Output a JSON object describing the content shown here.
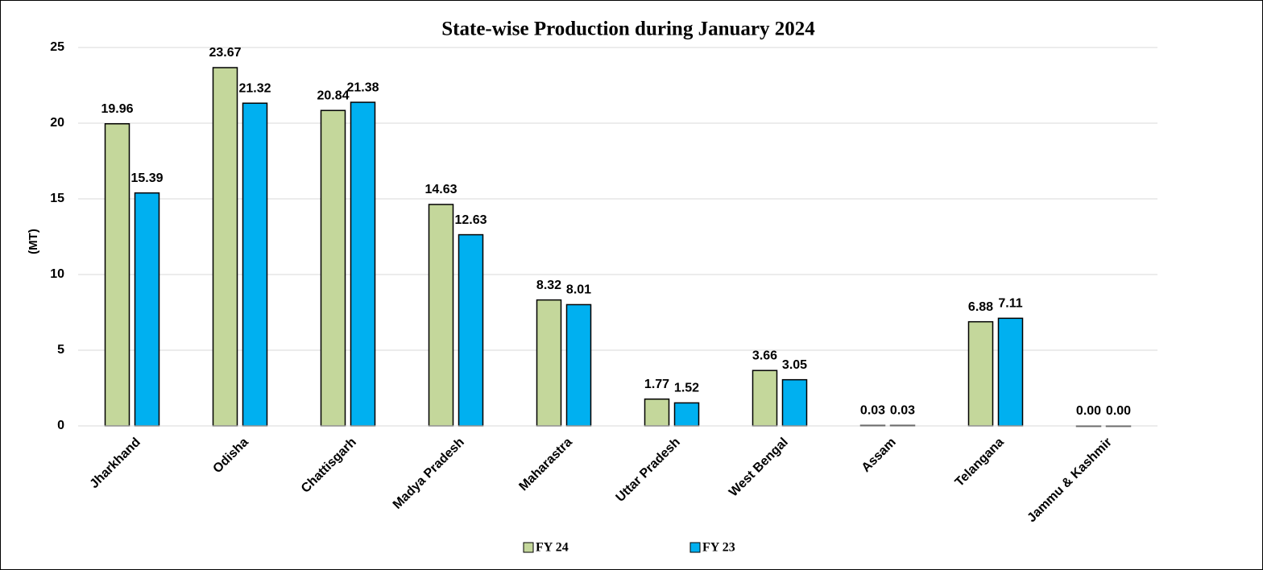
{
  "chart_data": {
    "type": "bar",
    "title": "State-wise Production during January 2024",
    "ylabel": "(MT)",
    "categories": [
      "Jharkhand",
      "Odisha",
      "Chattisgarh",
      "Madya Pradesh",
      "Maharastra",
      "Uttar Pradesh",
      "West Bengal",
      "Assam",
      "Telangana",
      "Jammu & Kashmir"
    ],
    "series": [
      {
        "name": "FY 24",
        "color": "#c4d79b",
        "values": [
          19.96,
          23.67,
          20.84,
          14.63,
          8.32,
          1.77,
          3.66,
          0.03,
          6.88,
          0
        ],
        "value_labels": [
          "19.96",
          "23.67",
          "20.84",
          "14.63",
          "8.32",
          "1.77",
          "3.66",
          "0.03",
          "6.88",
          "0.00"
        ]
      },
      {
        "name": "FY 23",
        "color": "#00b0f0",
        "values": [
          15.39,
          21.32,
          21.38,
          12.63,
          8.01,
          1.52,
          3.05,
          0.03,
          7.11,
          0
        ],
        "value_labels": [
          "15.39",
          "21.32",
          "21.38",
          "12.63",
          "8.01",
          "1.52",
          "3.05",
          "0.03",
          "7.11",
          "0.00"
        ]
      }
    ],
    "ylim": [
      0,
      25
    ],
    "yticks": [
      0,
      5,
      10,
      15,
      20,
      25
    ],
    "grid": true,
    "legend": "bottom"
  }
}
